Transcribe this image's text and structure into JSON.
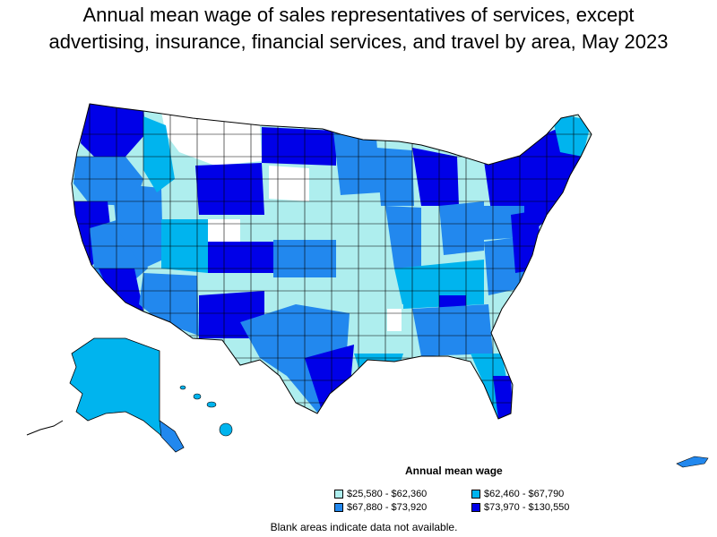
{
  "title": {
    "line1": "Annual mean wage of sales representatives of services, except",
    "line2": "advertising, insurance, financial services, and travel by area, May 2023"
  },
  "legend": {
    "title": "Annual mean wage",
    "items": [
      {
        "label": "$25,580 - $62,360",
        "color": "#aeeeee"
      },
      {
        "label": "$62,460 - $67,790",
        "color": "#00b4ee"
      },
      {
        "label": "$67,880 - $73,920",
        "color": "#2288ee"
      },
      {
        "label": "$73,970 - $130,550",
        "color": "#0000e8"
      }
    ]
  },
  "footnote": "Blank areas indicate data not available.",
  "colors": {
    "no_data": "#ffffff",
    "border": "#000000"
  }
}
